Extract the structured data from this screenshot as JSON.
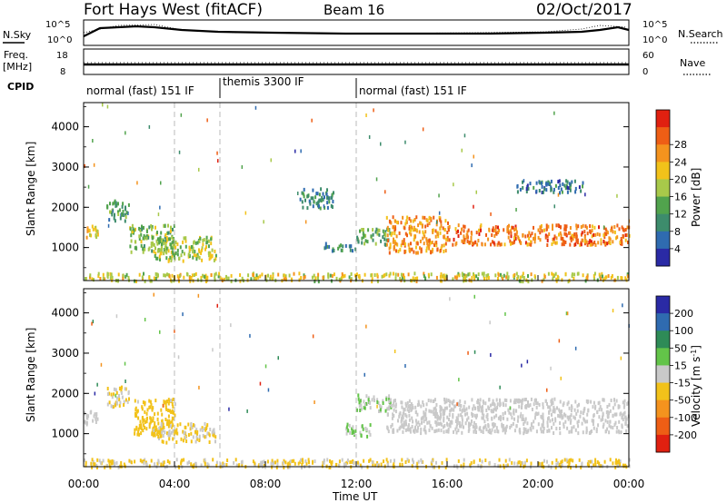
{
  "header": {
    "station": "Fort Hays West (fitACF)",
    "beam": "Beam 16",
    "date": "02/Oct/2017"
  },
  "noise_panel": {
    "left_label": "N.Sky",
    "right_label": "N.Search",
    "right_legend_line": "dotted",
    "left_ticks": [
      "10^5",
      "10^0"
    ],
    "right_ticks": [
      "10^5",
      "10^0"
    ]
  },
  "freq_panel": {
    "left_label_1": "Freq.",
    "left_label_2": "[MHz]",
    "right_label": "Nave",
    "left_ticks": [
      "18",
      "8"
    ],
    "right_ticks": [
      "60",
      "0"
    ]
  },
  "cpid": {
    "label": "CPID",
    "segments": [
      {
        "name": "normal (fast) 151 IF",
        "start_hr": 0,
        "end_hr": 6
      },
      {
        "name": "themis 3300 IF",
        "start_hr": 6,
        "end_hr": 12
      },
      {
        "name": "normal (fast) 151 IF",
        "start_hr": 12,
        "end_hr": 24
      }
    ]
  },
  "chart_data": [
    {
      "type": "heatmap",
      "title": "Power",
      "ylabel": "Slant Range [km]",
      "xlabel": "Time UT",
      "x_ticks": [
        "00:00",
        "04:00",
        "08:00",
        "12:00",
        "16:00",
        "20:00",
        "00:00"
      ],
      "xlim_hr": [
        0,
        24
      ],
      "y_ticks": [
        1000,
        2000,
        3000,
        4000
      ],
      "ylim": [
        180,
        4600
      ],
      "colorbar": {
        "label": "Power [dB]",
        "ticks": [
          "4",
          "8",
          "12",
          "16",
          "20",
          "24",
          "28"
        ],
        "colors": [
          "#2a2aa5",
          "#2f6bb0",
          "#3d8c6c",
          "#51a34d",
          "#a8c94a",
          "#f2c21a",
          "#f4931e",
          "#ee5e15",
          "#e02010"
        ]
      },
      "echo_regions": [
        {
          "t0": 0.0,
          "t1": 0.6,
          "r0": 1250,
          "r1": 1600,
          "value": 20
        },
        {
          "t0": 1.0,
          "t1": 2.0,
          "r0": 1700,
          "r1": 2200,
          "value": 10
        },
        {
          "t0": 2.0,
          "t1": 4.0,
          "r0": 900,
          "r1": 1600,
          "value": 14
        },
        {
          "t0": 3.0,
          "t1": 5.8,
          "r0": 700,
          "r1": 1300,
          "value": 16
        },
        {
          "t0": 9.5,
          "t1": 11.0,
          "r0": 2000,
          "r1": 2500,
          "value": 8
        },
        {
          "t0": 10.5,
          "t1": 12.0,
          "r0": 950,
          "r1": 1150,
          "value": 8
        },
        {
          "t0": 12.0,
          "t1": 13.5,
          "r0": 1100,
          "r1": 1500,
          "value": 12
        },
        {
          "t0": 13.3,
          "t1": 16.0,
          "r0": 900,
          "r1": 1800,
          "value": 24
        },
        {
          "t0": 16.0,
          "t1": 24.0,
          "r0": 1100,
          "r1": 1600,
          "value": 26
        },
        {
          "t0": 19.0,
          "t1": 22.0,
          "r0": 2400,
          "r1": 2700,
          "value": 6
        },
        {
          "t0": 0.0,
          "t1": 24.0,
          "r0": 200,
          "r1": 400,
          "value": 18
        }
      ]
    },
    {
      "type": "heatmap",
      "title": "Velocity",
      "ylabel": "Slant Range [km]",
      "xlabel": "Time UT",
      "x_ticks": [
        "00:00",
        "04:00",
        "08:00",
        "12:00",
        "16:00",
        "20:00",
        "00:00"
      ],
      "xlim_hr": [
        0,
        24
      ],
      "y_ticks": [
        1000,
        2000,
        3000,
        4000
      ],
      "ylim": [
        180,
        4600
      ],
      "colorbar": {
        "label": "Velocity [m s^-1]",
        "ticks": [
          "200",
          "100",
          "50",
          "15",
          "-15",
          "-50",
          "-100",
          "-200"
        ],
        "colors": [
          "#2a2aa5",
          "#2f6bb0",
          "#2e8b57",
          "#63c449",
          "#c9c9c9",
          "#f2c21a",
          "#f4931e",
          "#ee5e15",
          "#e02010"
        ]
      },
      "echo_regions": [
        {
          "t0": 0.0,
          "t1": 0.6,
          "r0": 1250,
          "r1": 1600,
          "value": 0
        },
        {
          "t0": 1.0,
          "t1": 2.0,
          "r0": 1700,
          "r1": 2200,
          "value": -30
        },
        {
          "t0": 2.2,
          "t1": 4.0,
          "r0": 1000,
          "r1": 1900,
          "value": -60
        },
        {
          "t0": 3.0,
          "t1": 5.8,
          "r0": 800,
          "r1": 1300,
          "value": -40
        },
        {
          "t0": 11.5,
          "t1": 12.6,
          "r0": 950,
          "r1": 1300,
          "value": 40
        },
        {
          "t0": 12.0,
          "t1": 13.5,
          "r0": 1600,
          "r1": 2000,
          "value": 25
        },
        {
          "t0": 13.3,
          "t1": 24.0,
          "r0": 1050,
          "r1": 1900,
          "value": 0
        },
        {
          "t0": 0.0,
          "t1": 24.0,
          "r0": 200,
          "r1": 400,
          "value": -40
        }
      ]
    }
  ]
}
